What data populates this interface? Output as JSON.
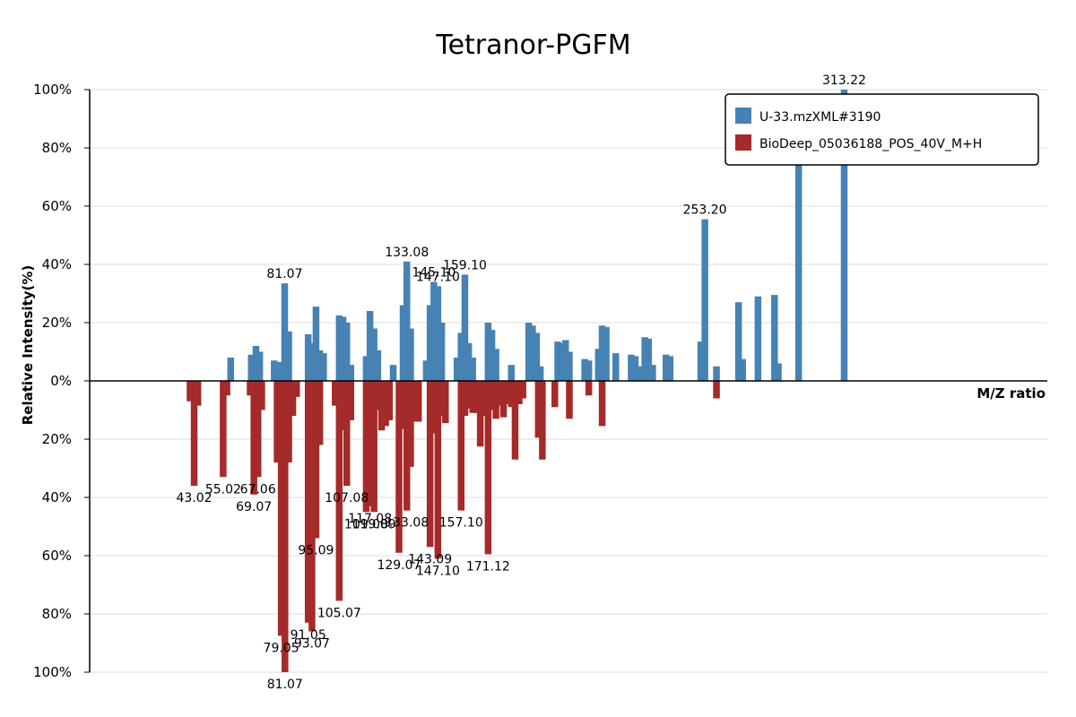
{
  "chart_data": {
    "type": "bar",
    "title": "Tetranor-PGFM",
    "xlabel": "M/Z ratio",
    "ylabel": "Relative Intensity(%)",
    "xlim": [
      0,
      330
    ],
    "ylim": [
      -100,
      100
    ],
    "y_ticks": [
      {
        "value": 100,
        "label": "100%"
      },
      {
        "value": 80,
        "label": "80%"
      },
      {
        "value": 60,
        "label": "60%"
      },
      {
        "value": 40,
        "label": "40%"
      },
      {
        "value": 20,
        "label": "20%"
      },
      {
        "value": 0,
        "label": "0%"
      },
      {
        "value": -20,
        "label": "20%"
      },
      {
        "value": -40,
        "label": "40%"
      },
      {
        "value": -60,
        "label": "60%"
      },
      {
        "value": -80,
        "label": "80%"
      },
      {
        "value": -100,
        "label": "100%"
      }
    ],
    "grid": true,
    "legend_position": "top-right",
    "colors": {
      "query": "#4682b4",
      "reference": "#a52a2a"
    },
    "series": [
      {
        "name": "U-33.mzXML#3190",
        "color": "#4682b4",
        "direction": "up",
        "points": [
          {
            "mz": 48.6,
            "value": 8
          },
          {
            "mz": 55.7,
            "value": 9
          },
          {
            "mz": 57.3,
            "value": 12
          },
          {
            "mz": 58.6,
            "value": 10
          },
          {
            "mz": 63.6,
            "value": 7
          },
          {
            "mz": 65.0,
            "value": 6.5
          },
          {
            "mz": 67.2,
            "value": 33.5,
            "label": "81.07"
          },
          {
            "mz": 68.6,
            "value": 17
          },
          {
            "mz": 75.3,
            "value": 16
          },
          {
            "mz": 76.6,
            "value": 13
          },
          {
            "mz": 78.0,
            "value": 25.5
          },
          {
            "mz": 79.3,
            "value": 10.5
          },
          {
            "mz": 80.6,
            "value": 9.5
          },
          {
            "mz": 86.0,
            "value": 22.5
          },
          {
            "mz": 87.3,
            "value": 22
          },
          {
            "mz": 88.6,
            "value": 20
          },
          {
            "mz": 90.0,
            "value": 5.5
          },
          {
            "mz": 95.3,
            "value": 8.5
          },
          {
            "mz": 96.6,
            "value": 24
          },
          {
            "mz": 98.0,
            "value": 18
          },
          {
            "mz": 99.3,
            "value": 10.5
          },
          {
            "mz": 104.6,
            "value": 5.5
          },
          {
            "mz": 108.0,
            "value": 26
          },
          {
            "mz": 109.3,
            "value": 41,
            "label": "133.08"
          },
          {
            "mz": 110.6,
            "value": 18
          },
          {
            "mz": 116.0,
            "value": 7
          },
          {
            "mz": 117.3,
            "value": 26
          },
          {
            "mz": 118.6,
            "value": 34,
            "label": "145.10"
          },
          {
            "mz": 120.0,
            "value": 32.5,
            "label": "147.10"
          },
          {
            "mz": 121.3,
            "value": 20
          },
          {
            "mz": 126.6,
            "value": 8
          },
          {
            "mz": 128.0,
            "value": 16.5
          },
          {
            "mz": 129.3,
            "value": 36.5,
            "label": "159.10"
          },
          {
            "mz": 130.6,
            "value": 13
          },
          {
            "mz": 132.0,
            "value": 8
          },
          {
            "mz": 137.3,
            "value": 20
          },
          {
            "mz": 138.6,
            "value": 17.5
          },
          {
            "mz": 140.0,
            "value": 11
          },
          {
            "mz": 145.3,
            "value": 5.5
          },
          {
            "mz": 151.3,
            "value": 20
          },
          {
            "mz": 152.6,
            "value": 19
          },
          {
            "mz": 154.0,
            "value": 16.5
          },
          {
            "mz": 155.3,
            "value": 5
          },
          {
            "mz": 161.3,
            "value": 13.5
          },
          {
            "mz": 162.6,
            "value": 13
          },
          {
            "mz": 164.0,
            "value": 14
          },
          {
            "mz": 165.3,
            "value": 10
          },
          {
            "mz": 170.6,
            "value": 7.5
          },
          {
            "mz": 172.0,
            "value": 7
          },
          {
            "mz": 175.3,
            "value": 11
          },
          {
            "mz": 176.6,
            "value": 19
          },
          {
            "mz": 178.0,
            "value": 18.5
          },
          {
            "mz": 181.3,
            "value": 9.5
          },
          {
            "mz": 186.6,
            "value": 9
          },
          {
            "mz": 188.0,
            "value": 8.5
          },
          {
            "mz": 189.3,
            "value": 5
          },
          {
            "mz": 191.3,
            "value": 15
          },
          {
            "mz": 192.6,
            "value": 14.5
          },
          {
            "mz": 194.0,
            "value": 5.5
          },
          {
            "mz": 198.6,
            "value": 9
          },
          {
            "mz": 200.0,
            "value": 8.5
          },
          {
            "mz": 210.6,
            "value": 13.5
          },
          {
            "mz": 212.0,
            "value": 55.5,
            "label": "253.20"
          },
          {
            "mz": 216.0,
            "value": 5
          },
          {
            "mz": 223.6,
            "value": 27
          },
          {
            "mz": 225.0,
            "value": 7.5
          },
          {
            "mz": 230.3,
            "value": 29
          },
          {
            "mz": 236.0,
            "value": 29.5
          },
          {
            "mz": 237.3,
            "value": 6
          },
          {
            "mz": 244.3,
            "value": 74
          },
          {
            "mz": 260.0,
            "value": 100,
            "label": "313.22"
          }
        ]
      },
      {
        "name": "BioDeep_05036188_POS_40V_M+H",
        "color": "#a52a2a",
        "direction": "down",
        "points": [
          {
            "mz": 34.6,
            "value": 7
          },
          {
            "mz": 36.0,
            "value": 36,
            "label": "43.02"
          },
          {
            "mz": 37.3,
            "value": 8.5
          },
          {
            "mz": 46.0,
            "value": 33,
            "label": "55.02"
          },
          {
            "mz": 47.3,
            "value": 5
          },
          {
            "mz": 55.3,
            "value": 5
          },
          {
            "mz": 56.6,
            "value": 39,
            "label": "69.07"
          },
          {
            "mz": 58.0,
            "value": 33,
            "label": "67.06"
          },
          {
            "mz": 59.3,
            "value": 10
          },
          {
            "mz": 64.6,
            "value": 28
          },
          {
            "mz": 66.0,
            "value": 87.5,
            "label": "79.05"
          },
          {
            "mz": 67.3,
            "value": 100,
            "label": "81.07"
          },
          {
            "mz": 68.6,
            "value": 28
          },
          {
            "mz": 70.0,
            "value": 12
          },
          {
            "mz": 71.3,
            "value": 5.5
          },
          {
            "mz": 75.3,
            "value": 83,
            "label": "91.05"
          },
          {
            "mz": 76.6,
            "value": 86,
            "label": "93.07"
          },
          {
            "mz": 78.0,
            "value": 54,
            "label": "95.09"
          },
          {
            "mz": 79.3,
            "value": 22
          },
          {
            "mz": 84.6,
            "value": 8.5
          },
          {
            "mz": 86.0,
            "value": 75.5,
            "label": "105.07"
          },
          {
            "mz": 87.3,
            "value": 17
          },
          {
            "mz": 88.6,
            "value": 36,
            "label": "107.08"
          },
          {
            "mz": 90.0,
            "value": 13.5
          },
          {
            "mz": 95.3,
            "value": 45,
            "label": "109.08"
          },
          {
            "mz": 96.6,
            "value": 43,
            "label": "117.08"
          },
          {
            "mz": 98.0,
            "value": 45,
            "label": "119.09"
          },
          {
            "mz": 99.3,
            "value": 10
          },
          {
            "mz": 100.6,
            "value": 17
          },
          {
            "mz": 102.0,
            "value": 15.5
          },
          {
            "mz": 103.3,
            "value": 13.5
          },
          {
            "mz": 106.6,
            "value": 59,
            "label": "129.07"
          },
          {
            "mz": 108.0,
            "value": 16.5
          },
          {
            "mz": 109.3,
            "value": 44.5,
            "label": "133.08"
          },
          {
            "mz": 110.6,
            "value": 29.5
          },
          {
            "mz": 112.0,
            "value": 14
          },
          {
            "mz": 113.3,
            "value": 14
          },
          {
            "mz": 117.3,
            "value": 57,
            "label": "143.09"
          },
          {
            "mz": 118.6,
            "value": 18
          },
          {
            "mz": 120.0,
            "value": 61,
            "label": "147.10"
          },
          {
            "mz": 121.3,
            "value": 12
          },
          {
            "mz": 122.6,
            "value": 14.5
          },
          {
            "mz": 128.0,
            "value": 44.5,
            "label": "157.10"
          },
          {
            "mz": 129.3,
            "value": 12
          },
          {
            "mz": 130.6,
            "value": 9.5
          },
          {
            "mz": 132.0,
            "value": 11
          },
          {
            "mz": 133.3,
            "value": 11
          },
          {
            "mz": 134.6,
            "value": 22.5
          },
          {
            "mz": 136.0,
            "value": 12
          },
          {
            "mz": 137.3,
            "value": 59.5,
            "label": "171.12"
          },
          {
            "mz": 138.6,
            "value": 10
          },
          {
            "mz": 140.0,
            "value": 13
          },
          {
            "mz": 141.3,
            "value": 8.5
          },
          {
            "mz": 142.6,
            "value": 12.5
          },
          {
            "mz": 144.0,
            "value": 8
          },
          {
            "mz": 145.3,
            "value": 9
          },
          {
            "mz": 146.6,
            "value": 27
          },
          {
            "mz": 148.0,
            "value": 8
          },
          {
            "mz": 149.3,
            "value": 6
          },
          {
            "mz": 154.6,
            "value": 19.5
          },
          {
            "mz": 156.0,
            "value": 27
          },
          {
            "mz": 160.3,
            "value": 9
          },
          {
            "mz": 165.3,
            "value": 13
          },
          {
            "mz": 172.0,
            "value": 5
          },
          {
            "mz": 176.6,
            "value": 15.5
          },
          {
            "mz": 216.0,
            "value": 6
          }
        ]
      }
    ]
  }
}
